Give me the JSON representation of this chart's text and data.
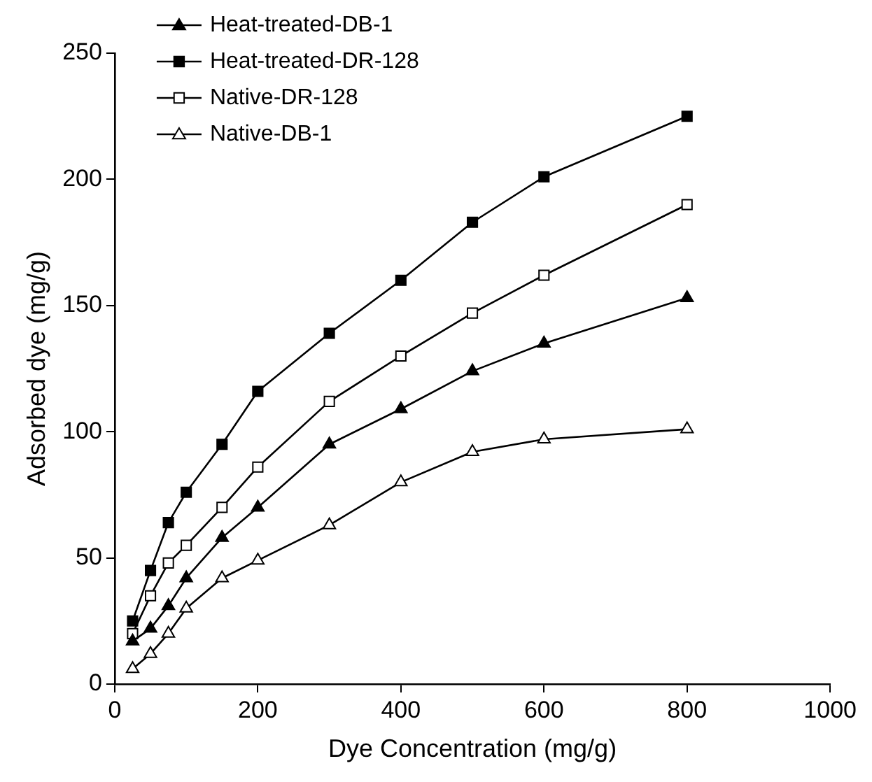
{
  "chart_data": {
    "type": "line",
    "xlabel": "Dye Concentration (mg/g)",
    "ylabel": "Adsorbed dye (mg/g)",
    "x": [
      25,
      50,
      75,
      100,
      150,
      200,
      300,
      400,
      500,
      600,
      800
    ],
    "series": [
      {
        "name": "Heat-treated-DB-1",
        "color": "#000000",
        "marker": "triangle",
        "values": [
          17,
          22,
          31,
          42,
          58,
          70,
          95,
          109,
          124,
          135,
          153
        ]
      },
      {
        "name": "Heat-treated-DR-128",
        "color": "#000000",
        "marker": "square",
        "values": [
          25,
          45,
          64,
          76,
          95,
          116,
          139,
          160,
          183,
          201,
          225
        ]
      },
      {
        "name": "Native-DR-128",
        "color": "#000000",
        "marker": "square",
        "values": [
          20,
          35,
          48,
          55,
          70,
          86,
          112,
          130,
          147,
          162,
          190
        ]
      },
      {
        "name": "Native-DB-1",
        "color": "#000000",
        "marker": "triangle",
        "values": [
          6,
          12,
          20,
          30,
          42,
          49,
          63,
          80,
          92,
          97,
          101
        ]
      }
    ],
    "xlim": [
      0,
      1000
    ],
    "xticks": [
      0,
      200,
      400,
      600,
      800,
      1000
    ],
    "ylim": [
      0,
      250
    ],
    "yticks": [
      0,
      50,
      100,
      150,
      200,
      250
    ],
    "grid": false,
    "legend": "top left",
    "line_style": "solid"
  }
}
